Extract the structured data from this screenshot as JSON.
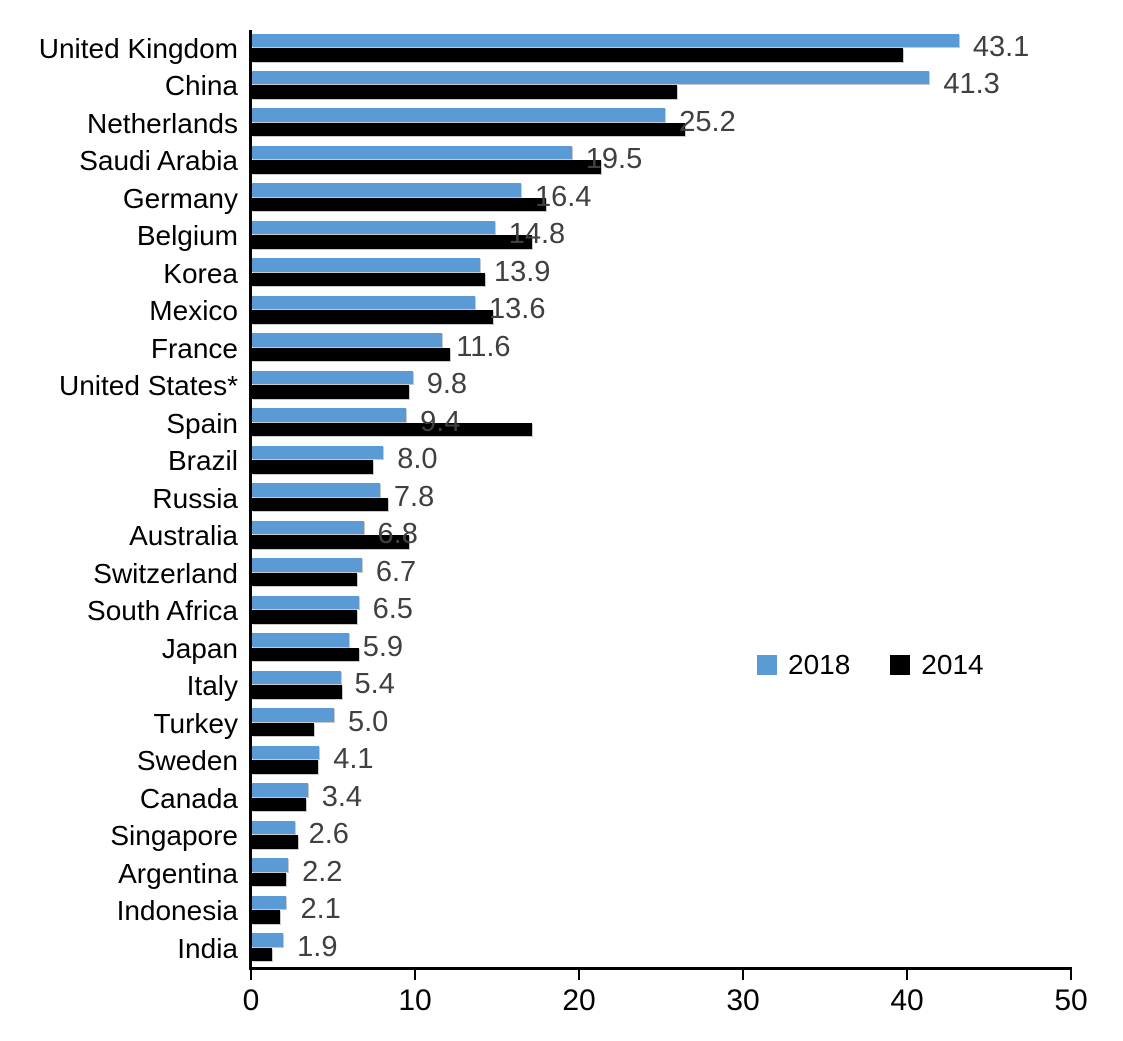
{
  "chart_data": {
    "type": "bar",
    "orientation": "horizontal",
    "title": "",
    "xlabel": "",
    "ylabel": "",
    "xlim": [
      0,
      50
    ],
    "x_ticks": [
      0,
      10,
      20,
      30,
      40,
      50
    ],
    "grid": false,
    "legend_position": "center-right",
    "categories": [
      "United Kingdom",
      "China",
      "Netherlands",
      "Saudi Arabia",
      "Germany",
      "Belgium",
      "Korea",
      "Mexico",
      "France",
      "United States*",
      "Spain",
      "Brazil",
      "Russia",
      "Australia",
      "Switzerland",
      "South Africa",
      "Japan",
      "Italy",
      "Turkey",
      "Sweden",
      "Canada",
      "Singapore",
      "Argentina",
      "Indonesia",
      "India"
    ],
    "series": [
      {
        "name": "2018",
        "color": "#5B9BD5",
        "data_labels": true,
        "values": [
          43.1,
          41.3,
          25.2,
          19.5,
          16.4,
          14.8,
          13.9,
          13.6,
          11.6,
          9.8,
          9.4,
          8.0,
          7.8,
          6.8,
          6.7,
          6.5,
          5.9,
          5.4,
          5.0,
          4.1,
          3.4,
          2.6,
          2.2,
          2.1,
          1.9
        ]
      },
      {
        "name": "2014",
        "color": "#000000",
        "data_labels": false,
        "values": [
          39.7,
          25.9,
          26.4,
          21.3,
          17.9,
          17.1,
          14.2,
          14.7,
          12.1,
          9.6,
          17.1,
          7.4,
          8.3,
          9.6,
          6.4,
          6.4,
          6.5,
          5.5,
          3.8,
          4.0,
          3.3,
          2.8,
          2.1,
          1.7,
          1.2
        ]
      }
    ],
    "data_label_values": [
      "43.1",
      "41.3",
      "25.2",
      "19.5",
      "16.4",
      "14.8",
      "13.9",
      "13.6",
      "11.6",
      "9.8",
      "9.4",
      "8.0",
      "7.8",
      "6.8",
      "6.7",
      "6.5",
      "5.9",
      "5.4",
      "5.0",
      "4.1",
      "3.4",
      "2.6",
      "2.2",
      "2.1",
      "1.9"
    ],
    "data_label_color": "#404040",
    "axis_color": "#000000"
  }
}
